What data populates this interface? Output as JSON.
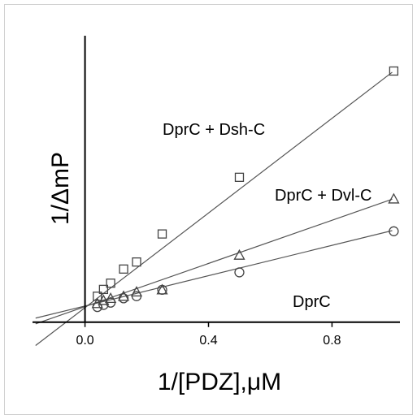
{
  "chart_data": {
    "type": "scatter",
    "xlabel": "1/[PDZ],μM",
    "ylabel": "1/ΔmP",
    "xlim": [
      -0.17,
      1.02
    ],
    "ylim": [
      -0.04,
      1.38
    ],
    "x_ticks": [
      0.0,
      0.4,
      0.8
    ],
    "x_tick_labels": [
      "0.0",
      "0.4",
      "0.8"
    ],
    "y_ticks_shown": false,
    "grid": false,
    "legend": "none",
    "series": [
      {
        "name": "DprC + Dsh-C",
        "marker": "square",
        "x": [
          0.04,
          0.06,
          0.083,
          0.125,
          0.167,
          0.25,
          0.5,
          1.0
        ],
        "y": [
          0.125,
          0.158,
          0.188,
          0.256,
          0.29,
          0.425,
          0.698,
          1.21
        ],
        "fit": {
          "slope": 1.14,
          "intercept": 0.07
        }
      },
      {
        "name": "DprC + Dvl-C",
        "marker": "triangle",
        "x": [
          0.04,
          0.06,
          0.083,
          0.125,
          0.167,
          0.25,
          0.5,
          1.0
        ],
        "y": [
          0.09,
          0.105,
          0.115,
          0.125,
          0.146,
          0.156,
          0.323,
          0.594
        ],
        "fit": {
          "slope": 0.52,
          "intercept": 0.075
        }
      },
      {
        "name": "DprC",
        "marker": "circle",
        "x": [
          0.04,
          0.06,
          0.083,
          0.125,
          0.167,
          0.25,
          0.5,
          1.0
        ],
        "y": [
          0.073,
          0.083,
          0.094,
          0.115,
          0.125,
          0.156,
          0.24,
          0.438
        ],
        "fit": {
          "slope": 0.365,
          "intercept": 0.078
        }
      }
    ]
  }
}
